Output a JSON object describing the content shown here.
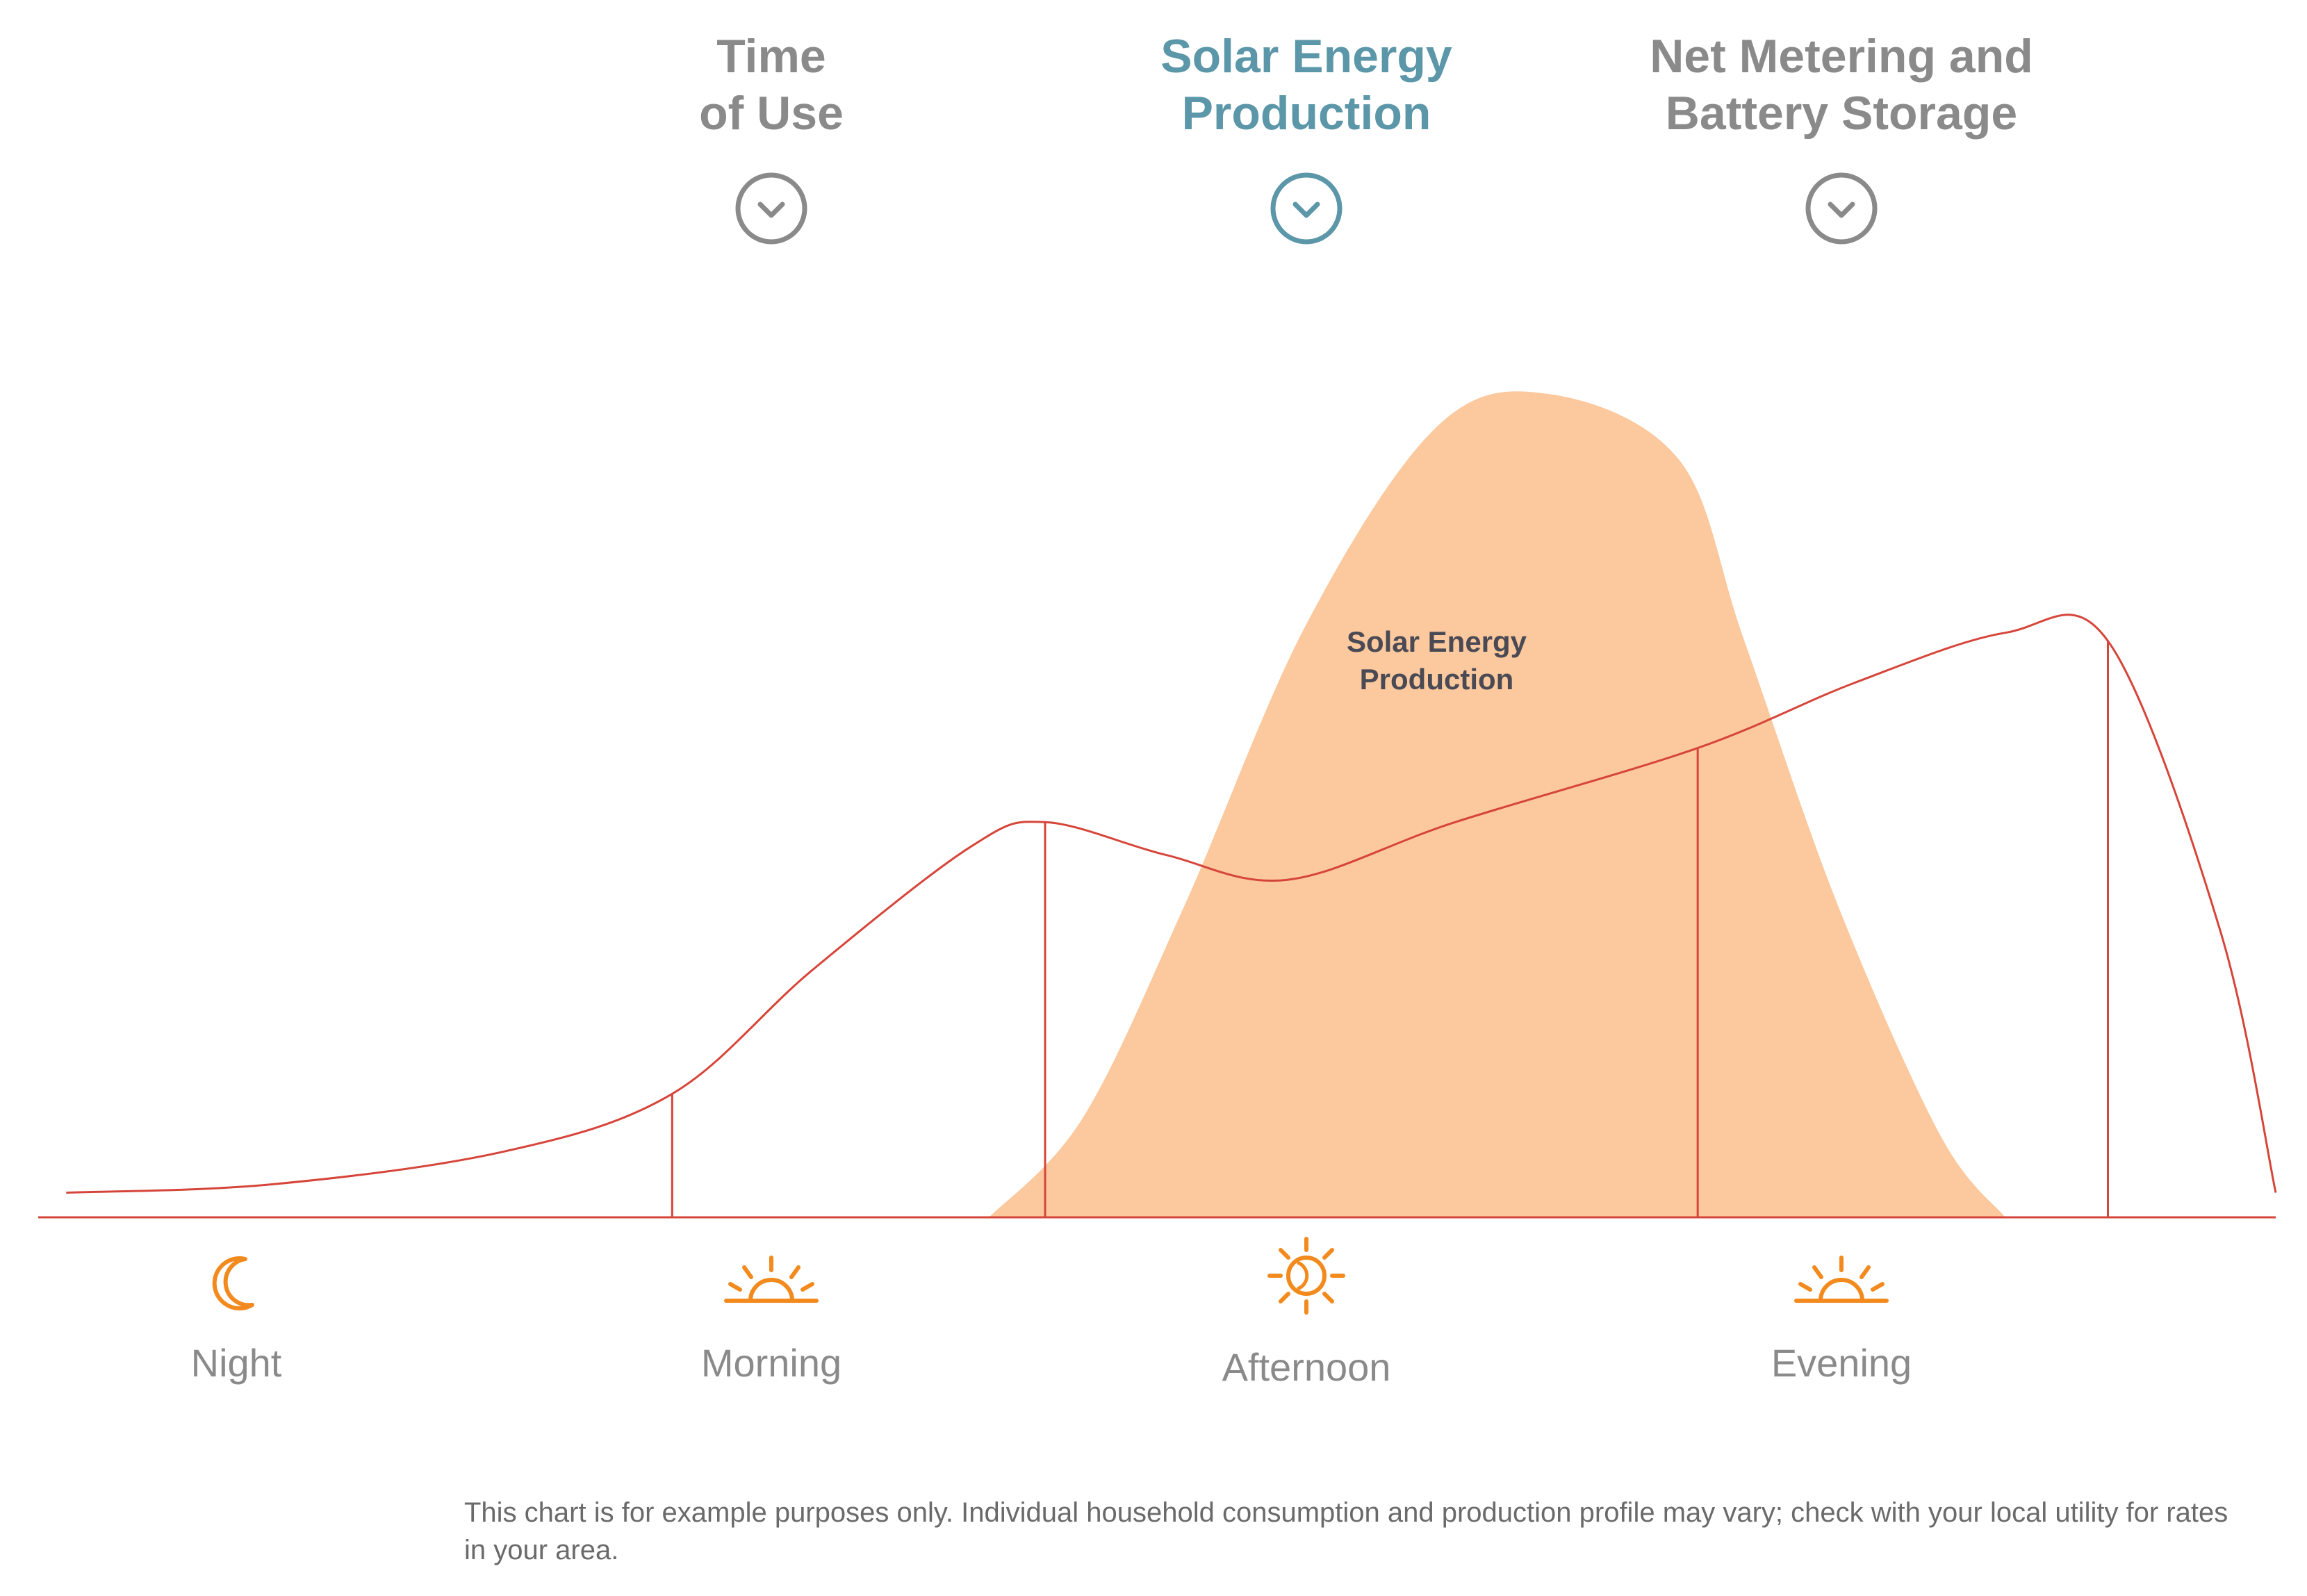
{
  "tabs": [
    {
      "label": "Time\nof Use",
      "active": false
    },
    {
      "label": "Solar Energy\nProduction",
      "active": true
    },
    {
      "label": "Net Metering and\nBattery Storage",
      "active": false
    }
  ],
  "colors": {
    "consumption_line": "#d6453a",
    "solar_fill": "#fcc89d",
    "tab_inactive": "#8a8a8a",
    "tab_active": "#5b97a8",
    "icon_orange": "#f28a1e",
    "period_label": "#8a8a8a"
  },
  "chart_data": {
    "type": "area",
    "area_label": "Solar Energy\nProduction",
    "x_range": [
      0,
      24
    ],
    "y_range": [
      0,
      100
    ],
    "solar_production": {
      "x": [
        10.2,
        11.2,
        12.3,
        13.6,
        15.0,
        16.2,
        17.6,
        18.3,
        19.3,
        20.4,
        21.1
      ],
      "y": [
        0,
        12,
        38,
        72,
        96,
        100,
        92,
        70,
        38,
        10,
        0
      ]
    },
    "consumption": {
      "x": [
        0.3,
        2.5,
        5.0,
        6.8,
        8.3,
        10.0,
        10.8,
        12.1,
        13.4,
        15.2,
        17.8,
        19.5,
        21.1,
        22.2,
        23.4,
        24.0
      ],
      "y": [
        3,
        4,
        8,
        15,
        30,
        45,
        48,
        44,
        41,
        48,
        57,
        65,
        71,
        70,
        35,
        3
      ]
    },
    "dividers": [
      6.8,
      10.8,
      17.8,
      22.2
    ],
    "periods": [
      {
        "label": "Night",
        "icon": "moon-icon"
      },
      {
        "label": "Morning",
        "icon": "sunrise-icon"
      },
      {
        "label": "Afternoon",
        "icon": "sun-icon"
      },
      {
        "label": "Evening",
        "icon": "sunset-icon"
      }
    ]
  },
  "disclaimer": "This chart is for example purposes only. Individual household consumption and production profile may vary; check with your local utility for rates in your area."
}
